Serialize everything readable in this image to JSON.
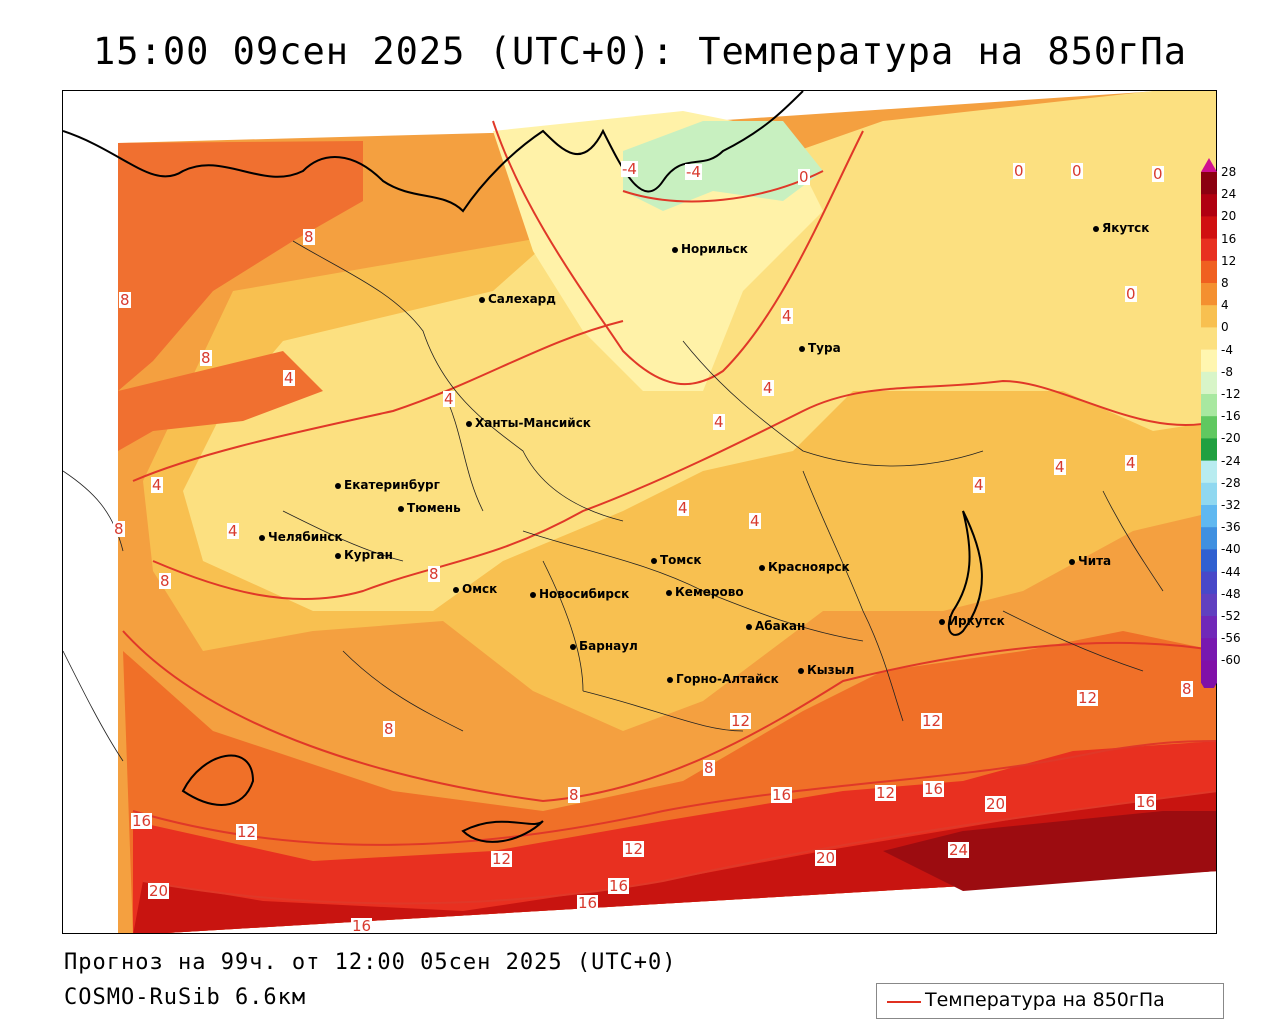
{
  "title": "15:00 09сен 2025 (UTC+0): Температура на 850гПа",
  "forecast_line": "Прогноз на 99ч. от 12:00 05сен 2025 (UTC+0)",
  "model_line": "COSMO-RuSib 6.6км",
  "legend": {
    "label": "Температура на 850гПа",
    "line_color": "#e03020"
  },
  "colorbar": {
    "labels": [
      "28",
      "24",
      "20",
      "16",
      "12",
      "8",
      "4",
      "0",
      "-4",
      "-8",
      "-12",
      "-16",
      "-20",
      "-24",
      "-28",
      "-32",
      "-36",
      "-40",
      "-44",
      "-48",
      "-52",
      "-56",
      "-60"
    ],
    "colors": [
      "#8b0010",
      "#b00010",
      "#d01010",
      "#e83020",
      "#f06020",
      "#f49030",
      "#f8c050",
      "#fce080",
      "#fff6b0",
      "#d8f5c8",
      "#a8e8a0",
      "#60c860",
      "#20a040",
      "#b8ecf0",
      "#90d8f0",
      "#60b8f0",
      "#4090e0",
      "#3060d0",
      "#4848c8",
      "#6040c0",
      "#7028b8",
      "#7818b0",
      "#8010a8"
    ]
  },
  "cities": [
    {
      "name": "Норильск"
    },
    {
      "name": "Якутск"
    },
    {
      "name": "Салехард"
    },
    {
      "name": "Тура"
    },
    {
      "name": "Ханты-Мансийск"
    },
    {
      "name": "Екатеринбург"
    },
    {
      "name": "Тюмень"
    },
    {
      "name": "Челябинск"
    },
    {
      "name": "Курган"
    },
    {
      "name": "Омск"
    },
    {
      "name": "Новосибирск"
    },
    {
      "name": "Томск"
    },
    {
      "name": "Кемерово"
    },
    {
      "name": "Красноярск"
    },
    {
      "name": "Барнаул"
    },
    {
      "name": "Абакан"
    },
    {
      "name": "Горно-Алтайск"
    },
    {
      "name": "Кызыл"
    },
    {
      "name": "Иркутск"
    },
    {
      "name": "Чита"
    }
  ],
  "isotherm_labels": [
    "-4",
    "-4",
    "0",
    "0",
    "0",
    "0",
    "0",
    "8",
    "8",
    "8",
    "4",
    "4",
    "4",
    "4",
    "4",
    "4",
    "4",
    "4",
    "4",
    "4",
    "4",
    "4",
    "8",
    "8",
    "8",
    "12",
    "12",
    "8",
    "8",
    "8",
    "12",
    "16",
    "16",
    "12",
    "16",
    "20",
    "16",
    "12",
    "20",
    "24",
    "12",
    "16",
    "16",
    "12",
    "20",
    "16",
    "8"
  ]
}
